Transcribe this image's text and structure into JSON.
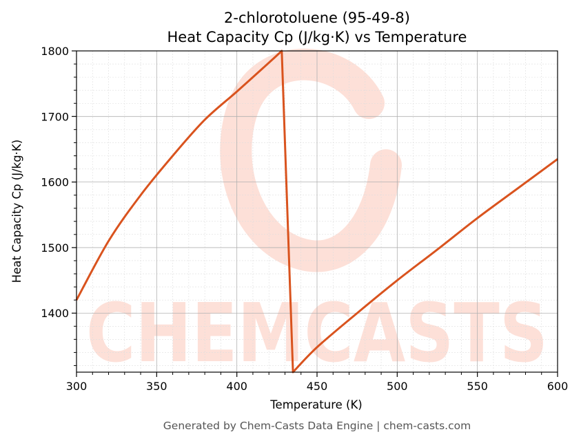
{
  "chart_data": {
    "type": "line",
    "title": "2-chlorotoluene (95-49-8)",
    "subtitle": "Heat Capacity Cp (J/kg·K) vs Temperature",
    "xlabel": "Temperature (K)",
    "ylabel": "Heat Capacity Cp (J/kg·K)",
    "xlim": [
      300,
      600
    ],
    "ylim": [
      1310,
      1800
    ],
    "x_ticks": [
      300,
      350,
      400,
      450,
      500,
      550,
      600
    ],
    "y_ticks": [
      1400,
      1500,
      1600,
      1700,
      1800
    ],
    "grid": true,
    "legend": "none",
    "colors": {
      "line": "#d9531e",
      "watermark": "#fde0d8",
      "grid_major": "#b0b0b0",
      "grid_minor": "#dddddd"
    },
    "series": [
      {
        "x": [
          300,
          320,
          340,
          360,
          380,
          400,
          420,
          428,
          435,
          450,
          475,
          500,
          525,
          550,
          575,
          600
        ],
        "y": [
          1420,
          1510,
          1580,
          1640,
          1695,
          1738,
          1782,
          1800,
          1310,
          1348,
          1400,
          1450,
          1497,
          1545,
          1590,
          1635
        ]
      }
    ]
  },
  "watermark": {
    "text": "CHEMCASTS"
  },
  "footer": {
    "text": "Generated by Chem-Casts Data Engine | chem-casts.com"
  }
}
